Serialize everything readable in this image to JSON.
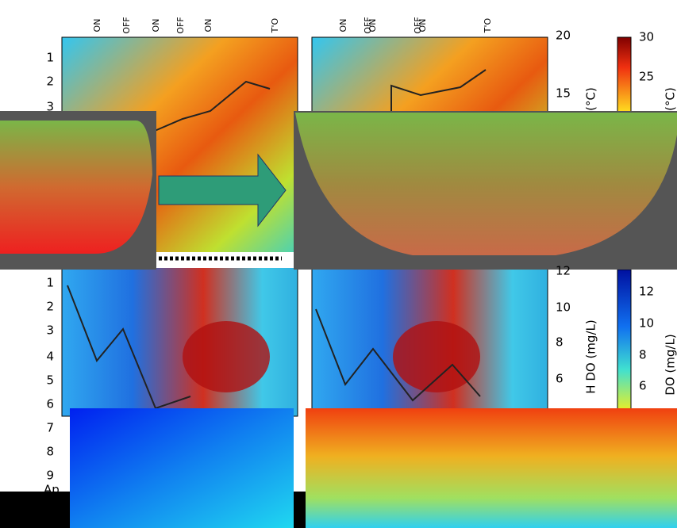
{
  "top_left_panel": {
    "event_labels": [
      "ON",
      "OFF",
      "ON",
      "OFF",
      "ON",
      "T'O"
    ],
    "depth_labels": [
      "1",
      "2",
      "3"
    ]
  },
  "top_right_panel": {
    "event_labels": [
      "ON",
      "OFF",
      "ON",
      "OFF",
      "ON",
      "T'O"
    ],
    "axis_ticks": [
      "20",
      "15"
    ],
    "colorbar_ticks": [
      "30",
      "25"
    ],
    "axis_label": "(°C)",
    "colorbar_label": "(°C)"
  },
  "bottom_left_panel": {
    "depth_labels": [
      "1",
      "2",
      "3",
      "4",
      "5",
      "6",
      "7",
      "8",
      "9"
    ],
    "date_label": "Ap"
  },
  "bottom_right_panel": {
    "axis_ticks": [
      "12",
      "10",
      "8",
      "6"
    ],
    "axis_label": "H DO (mg/L)",
    "colorbar_ticks": [
      "12",
      "10",
      "8",
      "6"
    ],
    "colorbar_label": "DO (mg/L)"
  }
}
